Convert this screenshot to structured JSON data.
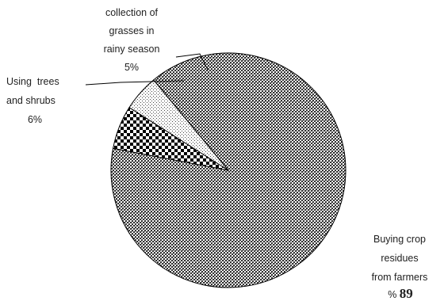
{
  "chart_data": {
    "type": "pie",
    "slices": [
      {
        "label_lines": [
          "Buying crop",
          "residues",
          "from farmers"
        ],
        "value": 89,
        "value_text": "89",
        "percent_prefix": "% ",
        "fill": "#555555",
        "pattern": "dense-dot"
      },
      {
        "label_lines": [
          "Using  trees",
          "and shrubs"
        ],
        "value": 6,
        "value_text": "6%",
        "fill": "#000000",
        "pattern": "checker"
      },
      {
        "label_lines": [
          "collection of",
          "grasses in",
          "rainy season"
        ],
        "value": 5,
        "value_text": "5%",
        "fill": "#aaaaaa",
        "pattern": "sparse-dot"
      }
    ]
  }
}
